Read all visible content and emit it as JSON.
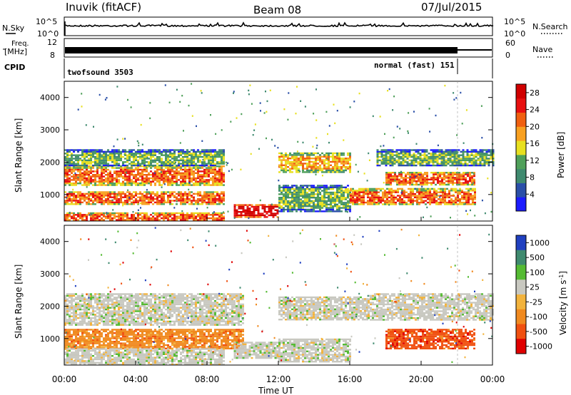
{
  "header": {
    "station": "Inuvik (fitACF)",
    "beam": "Beam 08",
    "date": "07/Jul/2015"
  },
  "top_panels": {
    "nsky_label": "N.Sky",
    "nsearch_label": "N.Search",
    "nsky_ticks": [
      "10^5",
      "10^0"
    ],
    "nsearch_ticks": [
      "10^5",
      "10^0"
    ],
    "freq_label_1": "Freq.",
    "freq_label_2": "[MHz]",
    "freq_ticks": [
      "12",
      "8"
    ],
    "nave_label": "Nave",
    "nave_ticks": [
      "60",
      "0"
    ],
    "cpid_label": "CPID",
    "cpid_1": "twofsound 3503",
    "cpid_2": "normal (fast) 151"
  },
  "x_axis": {
    "title": "Time UT",
    "ticks": [
      "00:00",
      "04:00",
      "08:00",
      "12:00",
      "16:00",
      "20:00",
      "00:00"
    ]
  },
  "colors": {
    "power_scale": [
      "#1c1cff",
      "#2a4fa8",
      "#3f8a6f",
      "#4fa05a",
      "#e8e020",
      "#f8a020",
      "#f06010",
      "#e81010",
      "#d00000"
    ],
    "velocity_scale": [
      "#2040c0",
      "#3f8a6f",
      "#55bb33",
      "#c8c8c0",
      "#f2b33d",
      "#f08a20",
      "#f05010",
      "#e00000"
    ]
  },
  "chart_data": [
    {
      "type": "heatmap",
      "title": "",
      "xlabel": "Time UT",
      "ylabel": "Slant Range [km]",
      "ylim": [
        180,
        4500
      ],
      "yticks": [
        1000,
        2000,
        3000,
        4000
      ],
      "xlim": [
        "00:00",
        "24:00"
      ],
      "colorbar": {
        "label": "Power [dB]",
        "range": [
          0,
          30
        ],
        "ticks": [
          4,
          8,
          12,
          16,
          20,
          24,
          28
        ]
      },
      "regions": [
        {
          "start": "00:00",
          "end": "09:00",
          "range_km": [
            200,
            450
          ],
          "dB": 22
        },
        {
          "start": "00:00",
          "end": "09:00",
          "range_km": [
            700,
            1100
          ],
          "dB": 24
        },
        {
          "start": "00:00",
          "end": "09:00",
          "range_km": [
            1300,
            1900
          ],
          "dB": 22
        },
        {
          "start": "00:00",
          "end": "09:00",
          "range_km": [
            1900,
            2400
          ],
          "dB": 12
        },
        {
          "start": "09:30",
          "end": "12:00",
          "range_km": [
            300,
            700
          ],
          "dB": 30
        },
        {
          "start": "12:00",
          "end": "16:00",
          "range_km": [
            500,
            1300
          ],
          "dB": 10
        },
        {
          "start": "12:00",
          "end": "16:00",
          "range_km": [
            1700,
            2300
          ],
          "dB": 20
        },
        {
          "start": "16:00",
          "end": "23:00",
          "range_km": [
            700,
            1200
          ],
          "dB": 24
        },
        {
          "start": "18:00",
          "end": "23:00",
          "range_km": [
            1300,
            1700
          ],
          "dB": 22
        },
        {
          "start": "17:30",
          "end": "24:00",
          "range_km": [
            1900,
            2400
          ],
          "dB": 12
        }
      ]
    },
    {
      "type": "heatmap",
      "title": "",
      "xlabel": "Time UT",
      "ylabel": "Slant Range [km]",
      "ylim": [
        180,
        4500
      ],
      "yticks": [
        1000,
        2000,
        3000,
        4000
      ],
      "xlim": [
        "00:00",
        "24:00"
      ],
      "colorbar": {
        "label": "Velocity [m s^-1]",
        "ticks": [
          1000,
          500,
          100,
          25,
          -25,
          -100,
          -500,
          -1000
        ]
      },
      "regions": [
        {
          "start": "00:00",
          "end": "10:00",
          "range_km": [
            1400,
            2400
          ],
          "velocity": 0
        },
        {
          "start": "00:00",
          "end": "10:00",
          "range_km": [
            700,
            1300
          ],
          "velocity": -200
        },
        {
          "start": "00:00",
          "end": "09:00",
          "range_km": [
            200,
            700
          ],
          "velocity": 50
        },
        {
          "start": "09:30",
          "end": "12:00",
          "range_km": [
            400,
            900
          ],
          "velocity": 0
        },
        {
          "start": "12:00",
          "end": "17:00",
          "range_km": [
            1600,
            2300
          ],
          "velocity": 0
        },
        {
          "start": "12:00",
          "end": "16:00",
          "range_km": [
            300,
            1000
          ],
          "velocity": 50
        },
        {
          "start": "18:00",
          "end": "23:00",
          "range_km": [
            700,
            1300
          ],
          "velocity": -500
        },
        {
          "start": "17:00",
          "end": "24:00",
          "range_km": [
            1600,
            2400
          ],
          "velocity": 0
        }
      ]
    }
  ]
}
